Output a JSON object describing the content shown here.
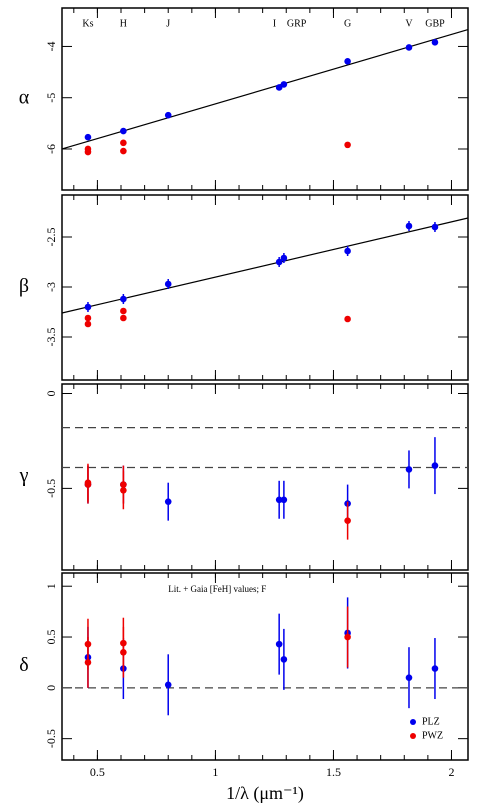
{
  "chart_data": [
    {
      "type": "scatter",
      "ylabel": "α",
      "band_labels": [
        "Ks",
        "H",
        "J",
        "I",
        "GRP",
        "G",
        "V",
        "GBP"
      ],
      "xlim": [
        0.35,
        2.07
      ],
      "xticks": [
        0.5,
        1,
        1.5,
        2
      ],
      "ylim": [
        -6.8,
        -3.25
      ],
      "yticks": [
        -4,
        -5,
        -6
      ],
      "series": [
        {
          "color": "#0000ee",
          "x": [
            0.46,
            0.61,
            0.8,
            1.27,
            1.29,
            1.56,
            1.82,
            1.93
          ],
          "values": [
            -5.77,
            -5.65,
            -5.34,
            -4.8,
            -4.74,
            -4.29,
            -4.02,
            -3.92
          ]
        },
        {
          "color": "#ee0000",
          "x": [
            0.46,
            0.46,
            0.61,
            0.61,
            1.56
          ],
          "values": [
            -6.0,
            -6.06,
            -5.88,
            -6.04,
            -5.92
          ]
        }
      ],
      "fit": {
        "x": [
          0.35,
          2.07
        ],
        "values": [
          -6.0,
          -3.67
        ]
      }
    },
    {
      "type": "scatter",
      "ylabel": "β",
      "xlim": [
        0.35,
        2.07
      ],
      "xticks": [
        0.5,
        1,
        1.5,
        2
      ],
      "ylim": [
        -3.93,
        -2.08
      ],
      "yticks": [
        -2.5,
        -3,
        -3.5
      ],
      "series": [
        {
          "color": "#0000ee",
          "x": [
            0.46,
            0.61,
            0.8,
            1.27,
            1.29,
            1.56,
            1.82,
            1.93
          ],
          "values": [
            -3.2,
            -3.12,
            -2.97,
            -2.75,
            -2.71,
            -2.64,
            -2.39,
            -2.4
          ],
          "errors": [
            0.05,
            0.05,
            0.05,
            0.05,
            0.05,
            0.05,
            0.05,
            0.05
          ]
        },
        {
          "color": "#ee0000",
          "x": [
            0.46,
            0.46,
            0.61,
            0.61,
            1.56
          ],
          "values": [
            -3.31,
            -3.37,
            -3.24,
            -3.31,
            -3.32
          ]
        }
      ],
      "fit": {
        "x": [
          0.35,
          2.07
        ],
        "values": [
          -3.26,
          -2.31
        ]
      }
    },
    {
      "type": "scatter",
      "ylabel": "γ",
      "xlim": [
        0.35,
        2.07
      ],
      "xticks": [
        0.5,
        1,
        1.5,
        2
      ],
      "ylim": [
        -0.93,
        0.05
      ],
      "yticks": [
        0,
        -0.5
      ],
      "hlines": [
        -0.18,
        -0.39
      ],
      "series": [
        {
          "color": "#0000ee",
          "x": [
            0.46,
            0.61,
            0.8,
            1.27,
            1.29,
            1.56,
            1.82,
            1.93
          ],
          "values": [
            -0.48,
            -0.48,
            -0.57,
            -0.56,
            -0.56,
            -0.58,
            -0.4,
            -0.38
          ],
          "errors": [
            0.1,
            0.1,
            0.1,
            0.1,
            0.1,
            0.1,
            0.1,
            0.15
          ]
        },
        {
          "color": "#ee0000",
          "x": [
            0.46,
            0.46,
            0.61,
            0.61,
            1.56
          ],
          "values": [
            -0.47,
            -0.48,
            -0.51,
            -0.48,
            -0.67
          ],
          "errors": [
            0.1,
            0.1,
            0.1,
            0.1,
            0.1
          ]
        }
      ]
    },
    {
      "type": "scatter",
      "ylabel": "δ",
      "xlabel": "1/λ (μm⁻¹)",
      "annotation": "Lit. + Gaia [FeH] values; F",
      "xlim": [
        0.35,
        2.07
      ],
      "xticks": [
        0.5,
        1,
        1.5,
        2
      ],
      "ylim": [
        -0.71,
        1.13
      ],
      "yticks": [
        1,
        0.5,
        0,
        -0.5
      ],
      "hlines": [
        0
      ],
      "legend": "lower right",
      "series": [
        {
          "name": "PLZ",
          "color": "#0000ee",
          "x": [
            0.46,
            0.61,
            0.8,
            1.27,
            1.29,
            1.56,
            1.82,
            1.93
          ],
          "values": [
            0.3,
            0.19,
            0.03,
            0.43,
            0.28,
            0.54,
            0.1,
            0.19
          ],
          "errors": [
            0.3,
            0.3,
            0.3,
            0.3,
            0.3,
            0.35,
            0.3,
            0.3
          ]
        },
        {
          "name": "PWZ",
          "color": "#ee0000",
          "x": [
            0.46,
            0.46,
            0.61,
            0.61,
            1.56
          ],
          "values": [
            0.43,
            0.25,
            0.44,
            0.35,
            0.5
          ],
          "errors": [
            0.25,
            0.25,
            0.25,
            0.25,
            0.3
          ]
        }
      ]
    }
  ]
}
